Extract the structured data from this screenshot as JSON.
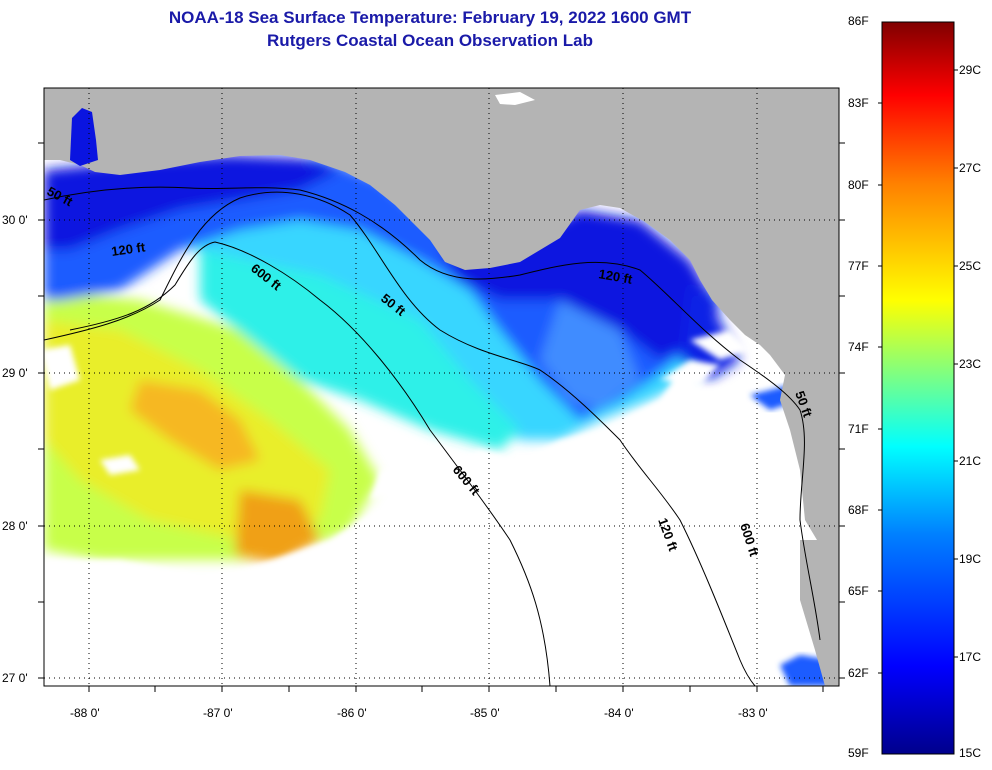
{
  "title": "NOAA-18 Sea Surface Temperature:  February 19, 2022 1600 GMT",
  "subtitle": "Rutgers Coastal Ocean Observation Lab",
  "latitude_labels": [
    "30 0'",
    "29 0'",
    "28 0'",
    "27 0'"
  ],
  "longitude_labels": [
    "-88 0'",
    "-87 0'",
    "-86 0'",
    "-85 0'",
    "-84 0'",
    "-83 0'"
  ],
  "contour_labels": [
    "50 ft",
    "120 ft",
    "600 ft",
    "600 ft",
    "120 ft",
    "50 ft",
    "120 ft",
    "600 ft",
    "50 ft"
  ],
  "colorbar": {
    "fahrenheit": [
      "86F",
      "83F",
      "80F",
      "77F",
      "74F",
      "71F",
      "68F",
      "65F",
      "62F",
      "59F"
    ],
    "celsius": [
      "29C",
      "27C",
      "25C",
      "23C",
      "21C",
      "19C",
      "17C",
      "15C"
    ]
  },
  "colors": {
    "land": "#b4b4b4",
    "cloud": "#ffffff",
    "title": "#1a1aa8"
  }
}
